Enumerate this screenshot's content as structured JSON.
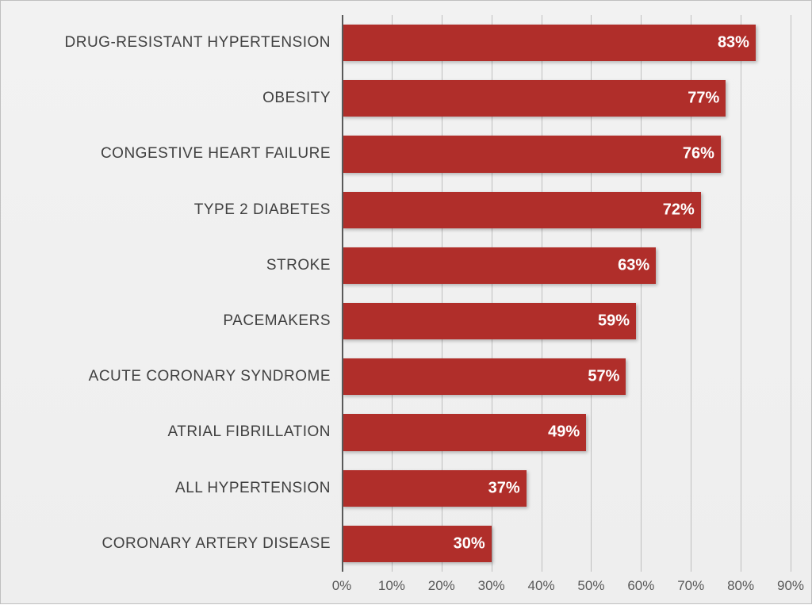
{
  "chart": {
    "type": "bar-horizontal",
    "background_gradient": [
      "#f2f2f2",
      "#eeeeee"
    ],
    "border_color": "#bfbfbf",
    "bar_color": "#b02e2a",
    "bar_shadow": "2px 2px 4px rgba(0,0,0,0.25)",
    "value_label_color": "#ffffff",
    "value_label_fontsize": 20,
    "value_label_fontweight": "bold",
    "category_label_color": "#404040",
    "category_label_fontsize": 19,
    "grid_color": "#bfbfbf",
    "axis_line_color": "#595959",
    "tick_label_color": "#595959",
    "tick_label_fontsize": 17,
    "xlim": [
      0,
      90
    ],
    "xtick_step": 10,
    "xticks": [
      {
        "v": 0,
        "label": "0%"
      },
      {
        "v": 10,
        "label": "10%"
      },
      {
        "v": 20,
        "label": "20%"
      },
      {
        "v": 30,
        "label": "30%"
      },
      {
        "v": 40,
        "label": "40%"
      },
      {
        "v": 50,
        "label": "50%"
      },
      {
        "v": 60,
        "label": "60%"
      },
      {
        "v": 70,
        "label": "70%"
      },
      {
        "v": 80,
        "label": "80%"
      },
      {
        "v": 90,
        "label": "90%"
      }
    ],
    "rows": [
      {
        "label": "DRUG-RESISTANT HYPERTENSION",
        "value": 83,
        "value_label": "83%"
      },
      {
        "label": "OBESITY",
        "value": 77,
        "value_label": "77%"
      },
      {
        "label": "CONGESTIVE HEART FAILURE",
        "value": 76,
        "value_label": "76%"
      },
      {
        "label": "TYPE 2 DIABETES",
        "value": 72,
        "value_label": "72%"
      },
      {
        "label": "STROKE",
        "value": 63,
        "value_label": "63%"
      },
      {
        "label": "PACEMAKERS",
        "value": 59,
        "value_label": "59%"
      },
      {
        "label": "ACUTE CORONARY SYNDROME",
        "value": 57,
        "value_label": "57%"
      },
      {
        "label": "ATRIAL FIBRILLATION",
        "value": 49,
        "value_label": "49%"
      },
      {
        "label": "ALL HYPERTENSION",
        "value": 37,
        "value_label": "37%"
      },
      {
        "label": "CORONARY ARTERY DISEASE",
        "value": 30,
        "value_label": "30%"
      }
    ]
  }
}
